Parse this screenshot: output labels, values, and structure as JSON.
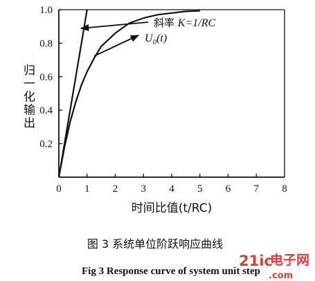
{
  "chart_data": {
    "type": "line",
    "xlabel": "时间比值(t/RC)",
    "ylabel": "归一化输出",
    "xlim": [
      0,
      8
    ],
    "ylim": [
      0,
      1.0
    ],
    "xticks": [
      "0",
      "1",
      "2",
      "3",
      "4",
      "5",
      "6",
      "7",
      "8"
    ],
    "yticks": [
      "1.0",
      "0.8",
      "0.6",
      "0.4",
      "0.2"
    ],
    "grid": false,
    "series": [
      {
        "name": "U0(t)",
        "x": [
          0,
          0.2,
          0.4,
          0.6,
          0.8,
          1.0,
          1.25,
          1.5,
          2.0,
          2.5,
          3.0,
          3.5,
          4.0,
          4.5,
          5.0
        ],
        "values": [
          0,
          0.18,
          0.33,
          0.45,
          0.55,
          0.63,
          0.71,
          0.78,
          0.86,
          0.92,
          0.95,
          0.97,
          0.98,
          0.99,
          0.993
        ]
      },
      {
        "name": "slope K=1/RC",
        "x": [
          0,
          1.0
        ],
        "values": [
          0,
          1.0
        ]
      }
    ],
    "annotations": [
      {
        "label_prefix": "斜率 ",
        "label_formula": "K=1/RC"
      },
      {
        "label": "U",
        "label_sub": "0",
        "label_suffix": "(t)"
      }
    ]
  },
  "caption": {
    "chinese": "图 3    系统单位阶跃响应曲线",
    "english": "Fig 3    Response curve of system unit step"
  },
  "watermark": {
    "brand": "21ic",
    "cn": "电子网",
    "domain": ".com"
  }
}
